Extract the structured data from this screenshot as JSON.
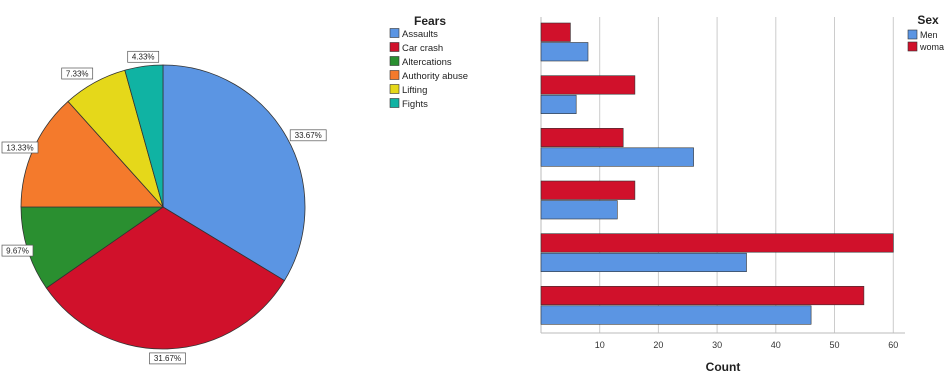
{
  "chart_data": [
    {
      "type": "pie",
      "legend_title": "Fears",
      "legend_position": "right",
      "slices": [
        {
          "label": "Assaults",
          "value": 33.67,
          "display": "33.67%",
          "color": "#5b95e3"
        },
        {
          "label": "Car crash",
          "value": 31.67,
          "display": "31.67%",
          "color": "#d0112b"
        },
        {
          "label": "Altercations",
          "value": 9.67,
          "display": "9.67%",
          "color": "#2a8f30"
        },
        {
          "label": "Authority abuse",
          "value": 13.33,
          "display": "13.33%",
          "color": "#f47a2c"
        },
        {
          "label": "Lifting",
          "value": 7.33,
          "display": "7.33%",
          "color": "#e5d81a"
        },
        {
          "label": "Fights",
          "value": 4.33,
          "display": "4.33%",
          "color": "#10b3a3"
        }
      ]
    },
    {
      "type": "bar",
      "orientation": "horizontal",
      "xlabel": "Count",
      "xlim": [
        0,
        62
      ],
      "xticks": [
        0,
        10,
        20,
        30,
        40,
        50,
        60
      ],
      "xtick_labels": [
        "",
        "10",
        "20",
        "30",
        "40",
        "50",
        "60"
      ],
      "grid": true,
      "legend_title": "Sex",
      "legend_position": "top-right",
      "group_count": 6,
      "series": [
        {
          "name": "woma",
          "color": "#d0112b",
          "values": [
            5,
            16,
            14,
            16,
            60,
            55
          ]
        },
        {
          "name": "Men",
          "color": "#5b95e3",
          "values": [
            8,
            6,
            26,
            13,
            35,
            46
          ]
        }
      ],
      "legend_order": [
        "Men",
        "woma"
      ]
    }
  ]
}
